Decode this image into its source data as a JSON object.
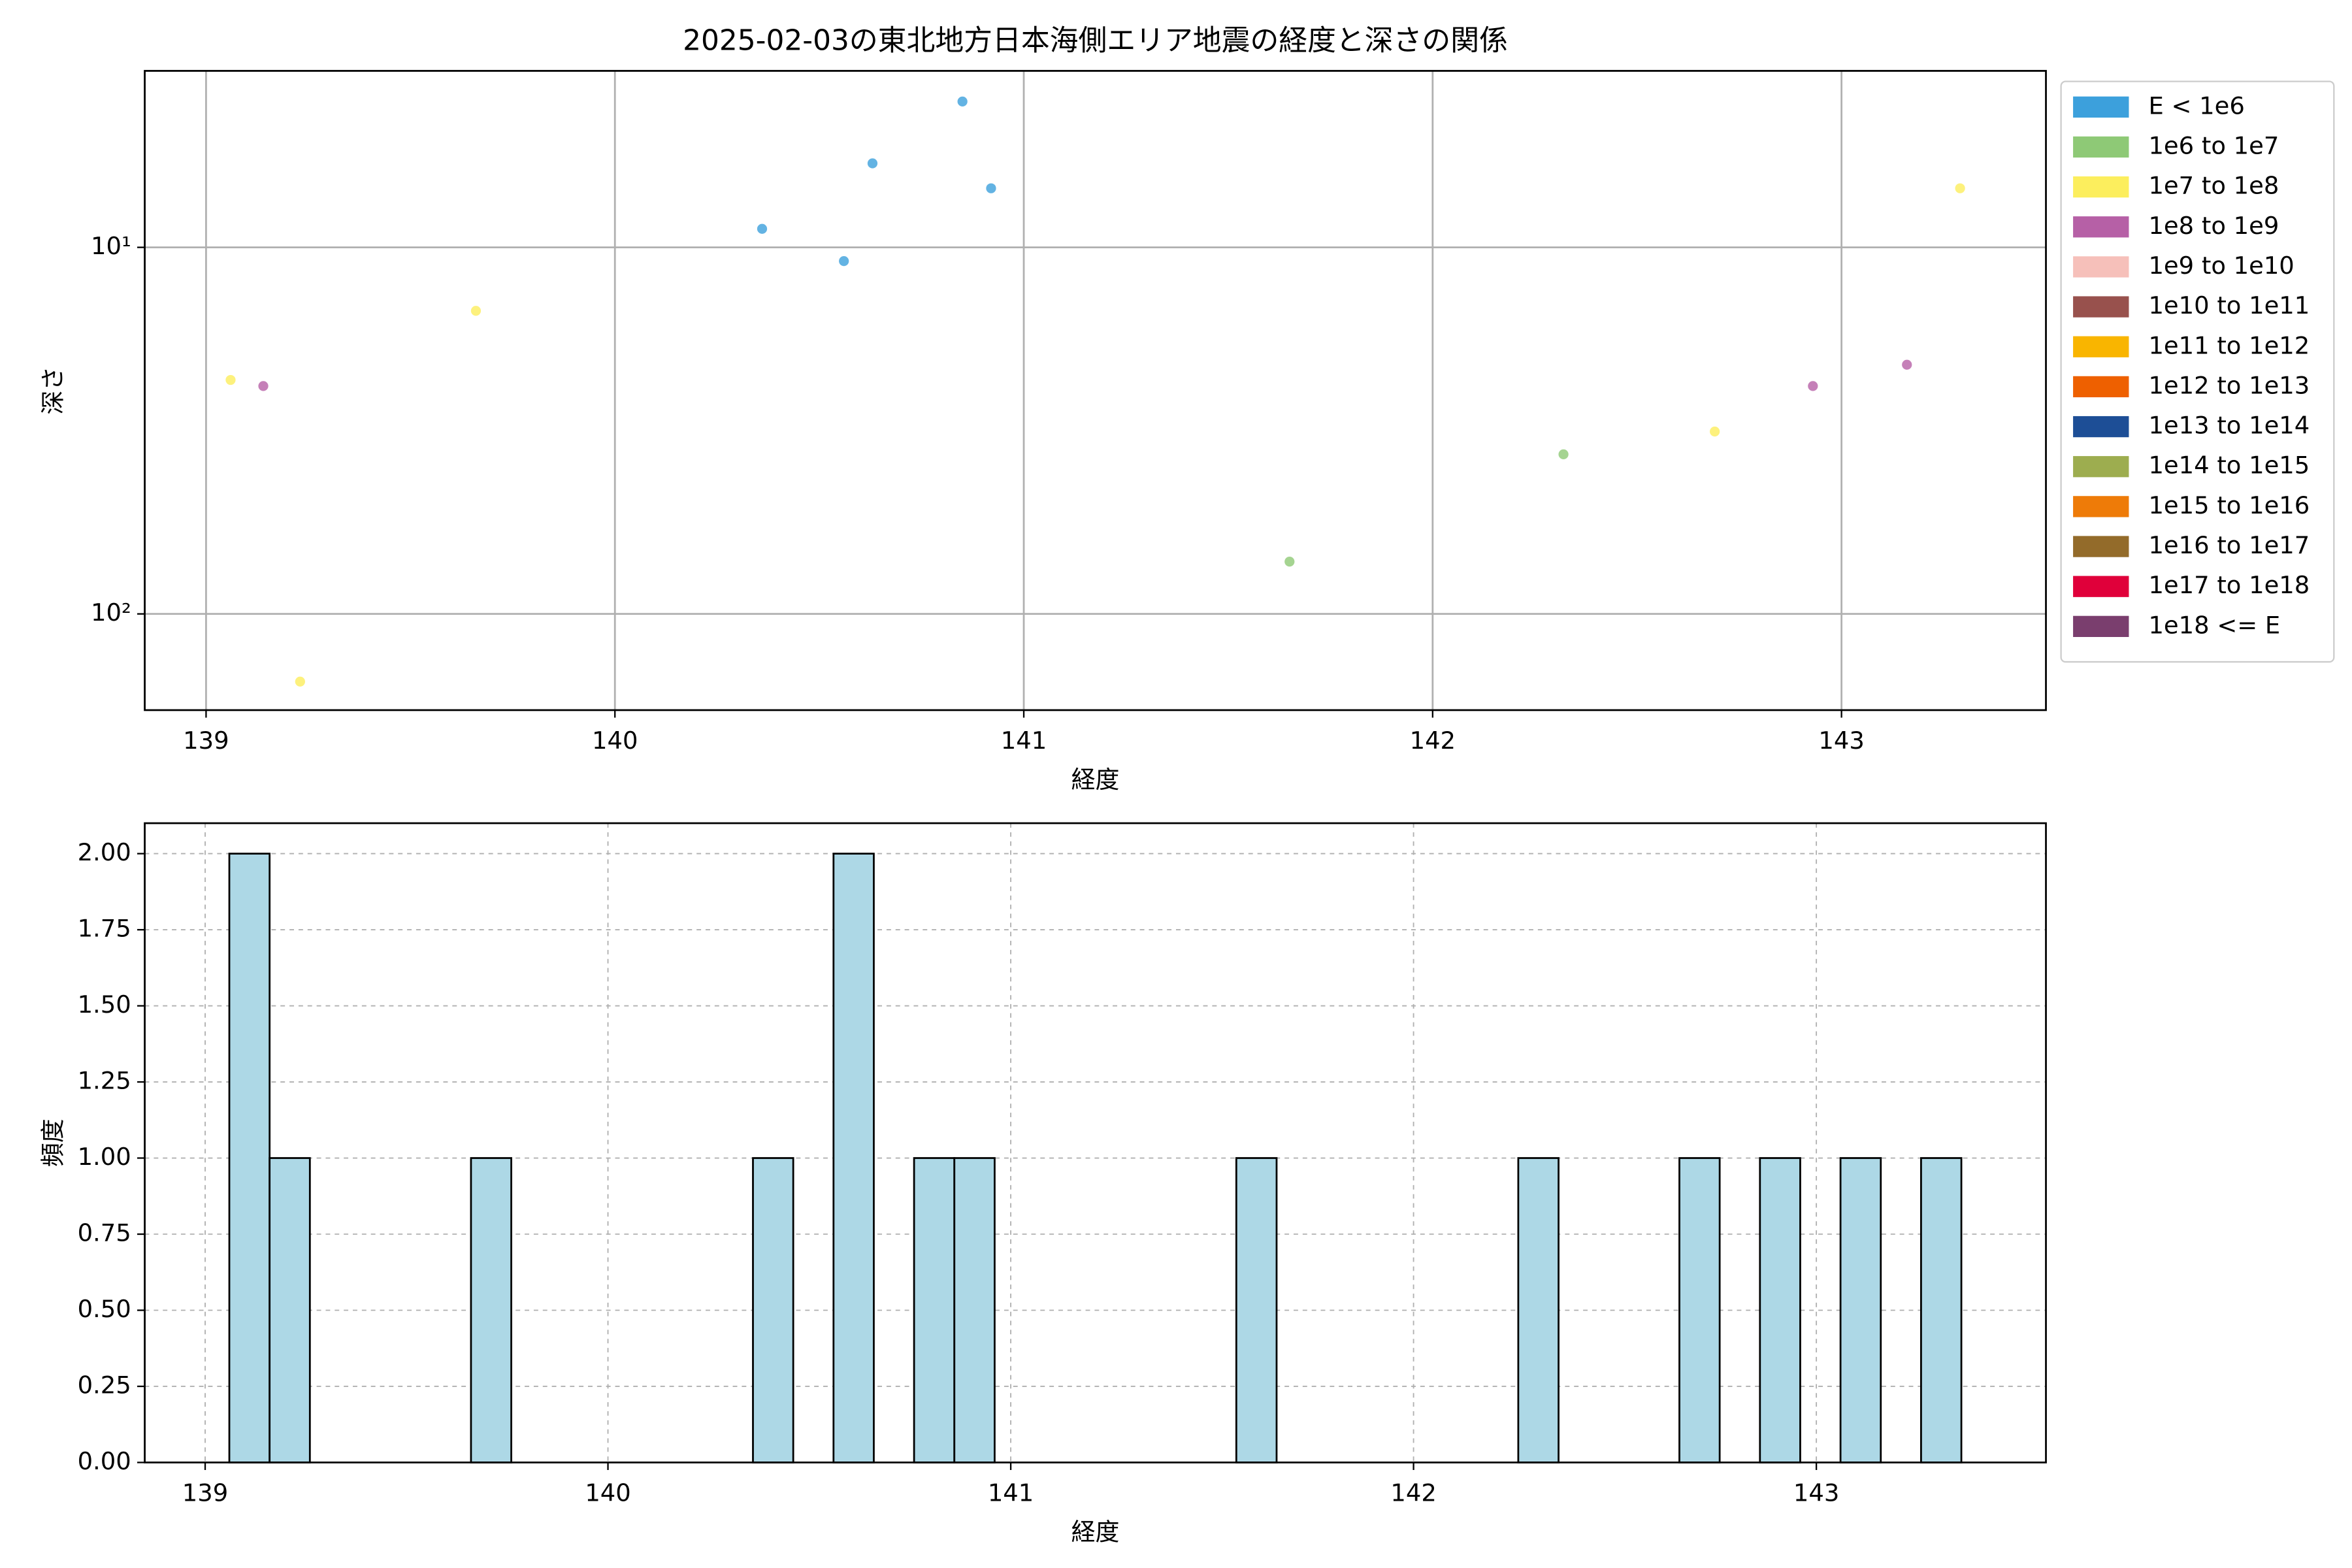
{
  "chart_data": [
    {
      "type": "scatter",
      "title": "2025-02-03の東北地方日本海側エリア地震の経度と深さの関係",
      "xlabel": "経度",
      "ylabel": "深さ",
      "xlim": [
        138.85,
        143.5
      ],
      "xticks": [
        139,
        140,
        141,
        142,
        143
      ],
      "ylim": [
        183,
        3.3
      ],
      "yscale": "log",
      "yticks": [
        {
          "value": 10,
          "label": "10¹"
        },
        {
          "value": 100,
          "label": "10²"
        }
      ],
      "grid": true,
      "legend": "right",
      "series": [
        {
          "name": "E < 1e6",
          "color": "#3ca0dc",
          "x": [
            140.36,
            140.56,
            140.63,
            140.85,
            140.92
          ],
          "values": [
            8.9,
            10.9,
            5.9,
            4.0,
            6.9
          ]
        },
        {
          "name": "1e6 to 1e7",
          "color": "#8ec976",
          "x": [
            141.65,
            142.32
          ],
          "values": [
            72,
            36.7
          ]
        },
        {
          "name": "1e7 to 1e8",
          "color": "#fcee5d",
          "x": [
            139.06,
            139.23,
            139.66,
            142.69,
            143.29
          ],
          "values": [
            23.0,
            153,
            14.9,
            31.8,
            6.9
          ]
        },
        {
          "name": "1e8 to 1e9",
          "color": "#b660a6",
          "x": [
            139.14,
            142.93,
            143.16
          ],
          "values": [
            23.9,
            23.9,
            20.9
          ]
        },
        {
          "name": "1e9 to 1e10",
          "color": "#f6c0ba",
          "x": [],
          "values": []
        },
        {
          "name": "1e10 to 1e11",
          "color": "#98514d",
          "x": [],
          "values": []
        },
        {
          "name": "1e11 to 1e12",
          "color": "#f9b500",
          "x": [],
          "values": []
        },
        {
          "name": "1e12 to 1e13",
          "color": "#ee6000",
          "x": [],
          "values": []
        },
        {
          "name": "1e13 to 1e14",
          "color": "#1d4e96",
          "x": [],
          "values": []
        },
        {
          "name": "1e14 to 1e15",
          "color": "#9dad4f",
          "x": [],
          "values": []
        },
        {
          "name": "1e15 to 1e16",
          "color": "#ee7b08",
          "x": [],
          "values": []
        },
        {
          "name": "1e16 to 1e17",
          "color": "#936b2a",
          "x": [],
          "values": []
        },
        {
          "name": "1e17 to 1e18",
          "color": "#e0003a",
          "x": [],
          "values": []
        },
        {
          "name": "1e18 <= E",
          "color": "#7a3e6e",
          "x": [],
          "values": []
        }
      ]
    },
    {
      "type": "histogram",
      "xlabel": "経度",
      "ylabel": "頻度",
      "color": "#add8e6",
      "xlim": [
        138.85,
        143.57
      ],
      "xticks": [
        139,
        140,
        141,
        142,
        143
      ],
      "ylim": [
        0,
        2.1
      ],
      "yticks": [
        {
          "value": 0,
          "label": "0.00"
        },
        {
          "value": 0.25,
          "label": "0.25"
        },
        {
          "value": 0.5,
          "label": "0.50"
        },
        {
          "value": 0.75,
          "label": "0.75"
        },
        {
          "value": 1,
          "label": "1.00"
        },
        {
          "value": 1.25,
          "label": "1.25"
        },
        {
          "value": 1.5,
          "label": "1.50"
        },
        {
          "value": 1.75,
          "label": "1.75"
        },
        {
          "value": 2,
          "label": "2.00"
        }
      ],
      "grid": true,
      "bins": [
        139.06,
        139.16,
        139.26,
        139.36,
        139.46,
        139.56,
        139.66,
        139.76,
        139.86,
        139.96,
        140.06,
        140.16,
        140.26,
        140.36,
        140.46,
        140.56,
        140.66,
        140.76,
        140.86,
        140.96,
        141.06,
        141.16,
        141.26,
        141.36,
        141.46,
        141.56,
        141.66,
        141.76,
        141.86,
        141.96,
        142.06,
        142.16,
        142.26,
        142.36,
        142.46,
        142.56,
        142.66,
        142.76,
        142.86,
        142.96,
        143.06,
        143.16,
        143.26,
        143.36
      ],
      "values": [
        2,
        1,
        0,
        0,
        0,
        0,
        1,
        0,
        0,
        0,
        0,
        0,
        0,
        1,
        0,
        2,
        0,
        1,
        1,
        0,
        0,
        0,
        0,
        0,
        0,
        1,
        0,
        0,
        0,
        0,
        0,
        0,
        1,
        0,
        0,
        0,
        1,
        0,
        1,
        0,
        1,
        0,
        1
      ]
    }
  ]
}
